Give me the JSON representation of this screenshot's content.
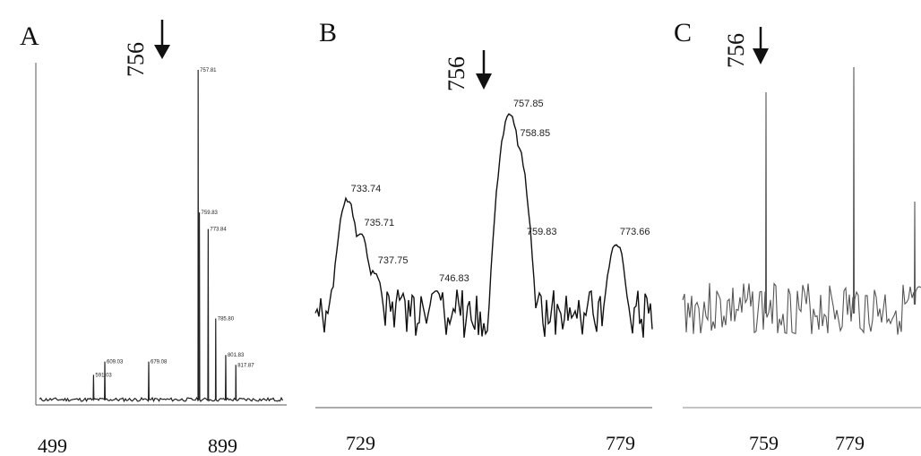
{
  "chart_data": [
    {
      "type": "line",
      "panel_label": "A",
      "arrow_label": "756",
      "arrow_x": 756,
      "xlabel": "",
      "ylabel": "",
      "xlim": [
        499,
        899
      ],
      "ylim": [
        0,
        1000
      ],
      "x_tick_labels": [
        "499",
        "899"
      ],
      "peaks": [
        {
          "x": 757.8,
          "y": 1000,
          "label": "757.81"
        },
        {
          "x": 759.8,
          "y": 570,
          "label": "759.83"
        },
        {
          "x": 773.8,
          "y": 520,
          "label": "773.84"
        },
        {
          "x": 785.8,
          "y": 250,
          "label": "785.80"
        },
        {
          "x": 801.8,
          "y": 140,
          "label": "801.83"
        },
        {
          "x": 817.9,
          "y": 110,
          "label": "817.87"
        },
        {
          "x": 609.0,
          "y": 120,
          "label": "609.03"
        },
        {
          "x": 591.0,
          "y": 80,
          "label": "591.03"
        },
        {
          "x": 679.0,
          "y": 120,
          "label": "679.08"
        }
      ]
    },
    {
      "type": "line",
      "panel_label": "B",
      "arrow_label": "756",
      "arrow_x": 756,
      "xlabel": "",
      "ylabel": "",
      "xlim": [
        729,
        779
      ],
      "x_tick_labels": [
        "729",
        "779"
      ],
      "peaks": [
        {
          "x": 733.74,
          "label": "733.74"
        },
        {
          "x": 735.71,
          "label": "735.71"
        },
        {
          "x": 737.75,
          "label": "737.75"
        },
        {
          "x": 746.83,
          "label": "746.83"
        },
        {
          "x": 757.85,
          "label": "757.85"
        },
        {
          "x": 758.85,
          "label": "758.85"
        },
        {
          "x": 759.83,
          "label": "759.83"
        },
        {
          "x": 773.66,
          "label": "773.66"
        }
      ]
    },
    {
      "type": "line",
      "panel_label": "C",
      "arrow_label": "756",
      "arrow_x": 756,
      "xlabel": "",
      "ylabel": "",
      "x_tick_labels": [
        "759",
        "779"
      ],
      "peaks": [
        {
          "x": 759
        },
        {
          "x": 779
        }
      ]
    }
  ]
}
